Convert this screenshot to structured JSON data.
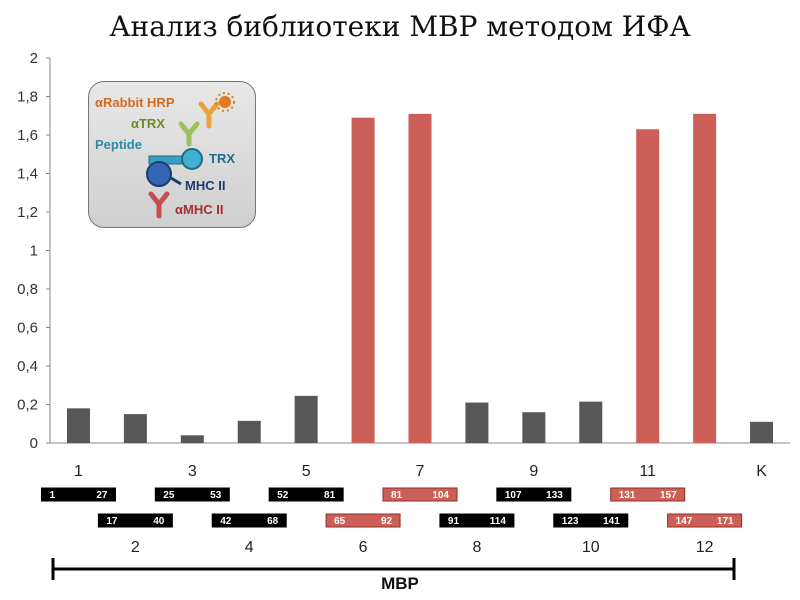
{
  "chart_data": {
    "type": "bar",
    "title": "Анализ библиотеки МВР методом ИФА",
    "ylim": [
      0,
      2
    ],
    "yticks": [
      "0",
      "0,2",
      "0,4",
      "0,6",
      "0,8",
      "1",
      "1,2",
      "1,4",
      "1,6",
      "1,8",
      "2"
    ],
    "categories": [
      "1",
      "2",
      "3",
      "4",
      "5",
      "6",
      "7",
      "8",
      "9",
      "10",
      "11",
      "12",
      "K"
    ],
    "top_labels": [
      "1",
      "3",
      "5",
      "7",
      "9",
      "11",
      "K"
    ],
    "bottom_labels": [
      "2",
      "4",
      "6",
      "8",
      "10",
      "12"
    ],
    "values": [
      0.18,
      0.15,
      0.04,
      0.115,
      0.245,
      1.69,
      1.71,
      0.21,
      0.16,
      0.215,
      1.63,
      1.71,
      0.11
    ],
    "highlight": [
      false,
      false,
      false,
      false,
      false,
      true,
      true,
      false,
      false,
      false,
      true,
      true,
      false
    ],
    "colors": {
      "normal": "#575757",
      "highlight": "#cc5f58",
      "segment_normal": "#000000",
      "segment_highlight": "#cc5f58"
    },
    "grid": false,
    "legend_position": "top-left",
    "segments": [
      {
        "start": "1",
        "end": "27",
        "highlight": false
      },
      {
        "start": "17",
        "end": "40",
        "highlight": false
      },
      {
        "start": "25",
        "end": "53",
        "highlight": false
      },
      {
        "start": "42",
        "end": "68",
        "highlight": false
      },
      {
        "start": "52",
        "end": "81",
        "highlight": false
      },
      {
        "start": "65",
        "end": "92",
        "highlight": true
      },
      {
        "start": "81",
        "end": "104",
        "highlight": true
      },
      {
        "start": "91",
        "end": "114",
        "highlight": false
      },
      {
        "start": "107",
        "end": "133",
        "highlight": false
      },
      {
        "start": "123",
        "end": "141",
        "highlight": false
      },
      {
        "start": "131",
        "end": "157",
        "highlight": true
      },
      {
        "start": "147",
        "end": "171",
        "highlight": true
      }
    ],
    "protein_label": "MBP"
  },
  "legend": {
    "rabbit": "αRabbit HRP",
    "trx_ab": "αTRX",
    "peptide": "Peptide",
    "trx": "TRX",
    "mhc": "MHC II",
    "mhc_ab": "αMHC II",
    "colors": {
      "rabbit": "#d46b1c",
      "trx_ab": "#6b8c2a",
      "peptide": "#2e8aa5",
      "trx": "#1f6d84",
      "mhc": "#1e3b6e",
      "mhc_ab": "#a42e2e"
    }
  }
}
